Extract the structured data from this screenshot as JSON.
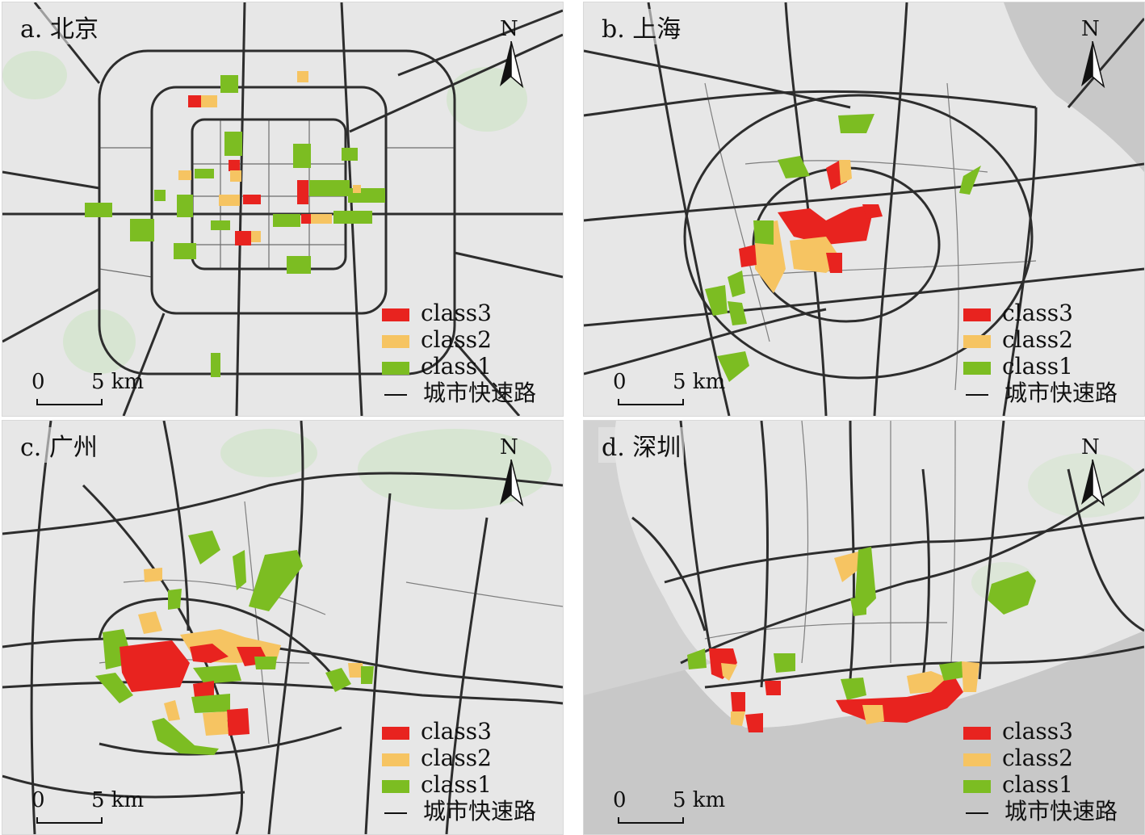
{
  "colors": {
    "class3": "#e8231f",
    "class2": "#f6c462",
    "class1": "#7cbd22",
    "road": "#2d2d2d",
    "background": "#e7e7e7",
    "green_space": "#d7e5d2",
    "water": "#c8c8c8"
  },
  "legend": {
    "class3": "class3",
    "class2": "class2",
    "class1": "class1",
    "road": "城市快速路"
  },
  "scale": {
    "zero": "0",
    "five": "5 km"
  },
  "north": "N",
  "icons": {
    "north_arrow": "north-arrow-icon",
    "scale_bar": "scale-bar-icon"
  },
  "panels": [
    {
      "id": "a",
      "title": "a. 北京"
    },
    {
      "id": "b",
      "title": "b. 上海"
    },
    {
      "id": "c",
      "title": "c. 广州"
    },
    {
      "id": "d",
      "title": "d. 深圳"
    }
  ]
}
